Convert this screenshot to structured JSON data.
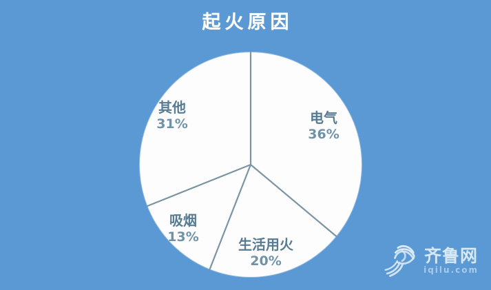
{
  "page": {
    "background_color": "#5a99d3"
  },
  "chart_data": {
    "type": "pie",
    "title": "起火原因",
    "slices": [
      {
        "label": "电气",
        "value": 36,
        "pct_text": "36%"
      },
      {
        "label": "生活用火",
        "value": 20,
        "pct_text": "20%"
      },
      {
        "label": "吸烟",
        "value": 13,
        "pct_text": "13%"
      },
      {
        "label": "其他",
        "value": 31,
        "pct_text": "31%"
      }
    ],
    "start_angle_deg": 0,
    "direction": "clockwise",
    "legend": "none",
    "labels_position": "inside",
    "pie_fill": "#fdfdfd",
    "divider_color": "#7b94a4",
    "label_color": "#577b92",
    "pct_color": "#6f92a8",
    "title_color": "#ffffff"
  },
  "watermark": {
    "site_name": "齐鲁网",
    "site_url": "iqilu.com"
  }
}
